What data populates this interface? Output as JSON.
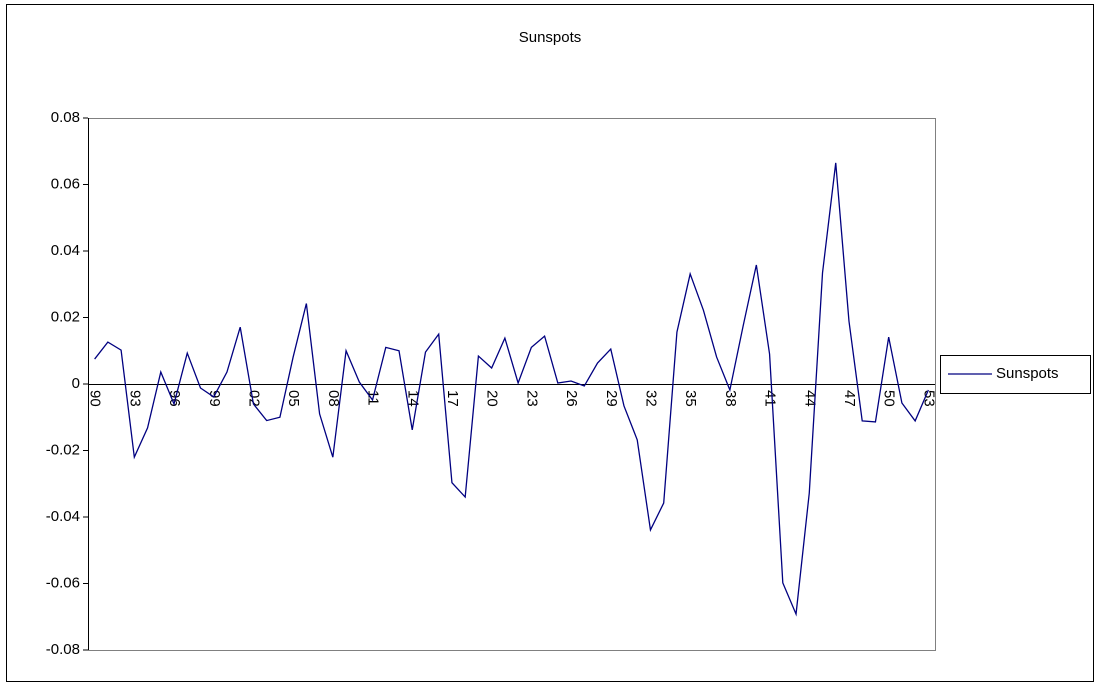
{
  "chart_data": {
    "type": "line",
    "title": "Sunspots",
    "categories": [
      "90",
      null,
      null,
      "93",
      null,
      null,
      "96",
      null,
      null,
      "99",
      null,
      null,
      "02",
      null,
      null,
      "05",
      null,
      null,
      "08",
      null,
      null,
      "11",
      null,
      null,
      "14",
      null,
      null,
      "17",
      null,
      null,
      "20",
      null,
      null,
      "23",
      null,
      null,
      "26",
      null,
      null,
      "29",
      null,
      null,
      "32",
      null,
      null,
      "35",
      null,
      null,
      "38",
      null,
      null,
      "41",
      null,
      null,
      "44",
      null,
      null,
      "47",
      null,
      null,
      "50",
      null,
      null,
      "53"
    ],
    "series": [
      {
        "name": "Sunspots",
        "color": "#000080",
        "values": [
          0.0075,
          0.0126,
          0.0102,
          -0.022,
          -0.0132,
          0.0036,
          -0.006,
          0.0093,
          -0.0012,
          -0.0039,
          0.0036,
          0.0171,
          -0.006,
          -0.011,
          -0.01,
          0.0081,
          0.0242,
          -0.009,
          -0.022,
          0.01,
          0.0006,
          -0.0048,
          0.011,
          0.01,
          -0.0138,
          0.0096,
          0.015,
          -0.0297,
          -0.034,
          0.0084,
          0.0048,
          0.0138,
          0.0003,
          0.011,
          0.0144,
          0.0003,
          0.0009,
          -0.0006,
          0.0063,
          0.0105,
          -0.0066,
          -0.0168,
          -0.0439,
          -0.0358,
          0.0156,
          0.0331,
          0.0222,
          0.0081,
          -0.0018,
          0.0174,
          0.0358,
          0.009,
          -0.0598,
          -0.0692,
          -0.0328,
          0.0334,
          0.0665,
          0.0189,
          -0.0111,
          -0.0114,
          0.0141,
          -0.0057,
          -0.0111,
          -0.0018
        ]
      }
    ],
    "ylim": [
      -0.08,
      0.08
    ],
    "yticks": [
      -0.08,
      -0.06,
      -0.04,
      -0.02,
      0,
      0.02,
      0.04,
      0.06,
      0.08
    ],
    "legend": "right"
  }
}
